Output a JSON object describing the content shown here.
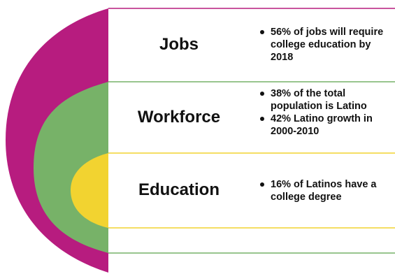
{
  "rows": [
    {
      "label": "Jobs",
      "bullets": [
        "56% of jobs will require college education by 2018"
      ]
    },
    {
      "label": "Workforce",
      "bullets": [
        "38% of the total population is Latino",
        "42% Latino growth in 2000-2010"
      ]
    },
    {
      "label": "Education",
      "bullets": [
        "16% of Latinos have a college degree"
      ]
    }
  ],
  "colors": {
    "outer_arc": "#B71C7F",
    "middle_arc": "#77B268",
    "inner_arc": "#F2D330",
    "jobs_line": "#B71C7F",
    "workforce_line": "#77B268",
    "education_line": "#F2D330"
  }
}
